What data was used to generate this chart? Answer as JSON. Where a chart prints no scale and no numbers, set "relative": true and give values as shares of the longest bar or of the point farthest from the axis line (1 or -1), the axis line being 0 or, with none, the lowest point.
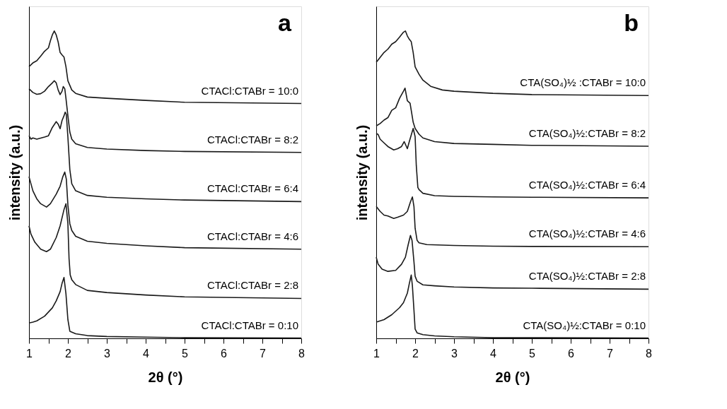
{
  "chart_data": [
    {
      "type": "line",
      "relative": true,
      "annotations": [
        "a"
      ],
      "xlabel": "2θ (°)",
      "ylabel": "intensity (a.u.)",
      "xlim": [
        1,
        8
      ],
      "xticks": [
        1,
        {
          "value": 1.5,
          "label": null
        },
        2,
        {
          "value": 2.5,
          "label": null
        },
        3,
        {
          "value": 3.5,
          "label": null
        },
        4,
        {
          "value": 4.5,
          "label": null
        },
        5,
        {
          "value": 5.5,
          "label": null
        },
        6,
        {
          "value": 6.5,
          "label": null
        },
        7,
        {
          "value": 7.5,
          "label": null
        },
        8
      ],
      "legend": false,
      "grid": false,
      "marker": "none",
      "line_style": "solid",
      "series": [
        {
          "name": "CTACl:CTABr = 10:0",
          "color": "#1a1a1a",
          "x": [
            1.0,
            1.1,
            1.2,
            1.3,
            1.4,
            1.5,
            1.55,
            1.6,
            1.65,
            1.7,
            1.75,
            1.8,
            1.85,
            1.9,
            1.95,
            2.0,
            2.1,
            2.2,
            2.5,
            3.0,
            4.0,
            5.0,
            8.0
          ],
          "values": [
            0.884,
            0.896,
            0.903,
            0.918,
            0.934,
            0.945,
            0.968,
            0.987,
            1.0,
            0.987,
            0.964,
            0.93,
            0.922,
            0.915,
            0.884,
            0.838,
            0.808,
            0.797,
            0.785,
            0.781,
            0.774,
            0.768,
            0.764
          ]
        },
        {
          "name": "CTACl:CTABr = 8:2",
          "color": "#1a1a1a",
          "x": [
            1.0,
            1.1,
            1.2,
            1.3,
            1.4,
            1.5,
            1.6,
            1.65,
            1.7,
            1.75,
            1.8,
            1.85,
            1.88,
            1.92,
            1.95,
            2.0,
            2.05,
            2.1,
            2.2,
            2.5,
            3.0,
            4.0,
            5.0,
            8.0
          ],
          "values": [
            0.812,
            0.8,
            0.794,
            0.796,
            0.804,
            0.819,
            0.831,
            0.838,
            0.831,
            0.808,
            0.793,
            0.804,
            0.819,
            0.812,
            0.781,
            0.724,
            0.671,
            0.648,
            0.633,
            0.621,
            0.616,
            0.611,
            0.608,
            0.605
          ]
        },
        {
          "name": "CTACl:CTABr = 6:4",
          "color": "#1a1a1a",
          "x": [
            1.0,
            1.05,
            1.1,
            1.2,
            1.4,
            1.5,
            1.6,
            1.7,
            1.75,
            1.8,
            1.85,
            1.9,
            1.93,
            1.96,
            2.0,
            2.05,
            2.1,
            2.2,
            2.5,
            3.0,
            4.0,
            5.0,
            8.0
          ],
          "values": [
            0.659,
            0.648,
            0.652,
            0.648,
            0.655,
            0.659,
            0.686,
            0.705,
            0.697,
            0.682,
            0.709,
            0.724,
            0.736,
            0.728,
            0.655,
            0.549,
            0.503,
            0.48,
            0.465,
            0.459,
            0.454,
            0.45,
            0.445
          ]
        },
        {
          "name": "CTACl:CTABr = 4:6",
          "color": "#1a1a1a",
          "x": [
            1.0,
            1.05,
            1.1,
            1.2,
            1.3,
            1.45,
            1.55,
            1.7,
            1.8,
            1.87,
            1.92,
            1.96,
            2.0,
            2.05,
            2.1,
            2.2,
            2.5,
            3.0,
            4.0,
            5.0,
            8.0
          ],
          "values": [
            0.526,
            0.503,
            0.48,
            0.454,
            0.438,
            0.427,
            0.438,
            0.469,
            0.495,
            0.526,
            0.541,
            0.518,
            0.434,
            0.373,
            0.351,
            0.332,
            0.316,
            0.309,
            0.301,
            0.295,
            0.29
          ]
        },
        {
          "name": "CTACl:CTABr = 2:8",
          "color": "#1a1a1a",
          "x": [
            1.0,
            1.05,
            1.15,
            1.3,
            1.45,
            1.55,
            1.7,
            1.8,
            1.9,
            1.95,
            2.0,
            2.03,
            2.06,
            2.1,
            2.2,
            2.5,
            3.0,
            4.0,
            5.0,
            8.0
          ],
          "values": [
            0.366,
            0.339,
            0.313,
            0.29,
            0.282,
            0.29,
            0.328,
            0.366,
            0.419,
            0.438,
            0.373,
            0.259,
            0.206,
            0.191,
            0.175,
            0.156,
            0.149,
            0.141,
            0.135,
            0.13
          ]
        },
        {
          "name": "CTACl:CTABr = 0:10",
          "color": "#1a1a1a",
          "x": [
            1.0,
            1.1,
            1.2,
            1.4,
            1.6,
            1.7,
            1.8,
            1.85,
            1.9,
            1.95,
            2.0,
            2.05,
            2.2,
            2.5,
            3.0,
            4.0,
            5.0,
            8.0
          ],
          "values": [
            0.05,
            0.053,
            0.057,
            0.072,
            0.099,
            0.122,
            0.152,
            0.179,
            0.198,
            0.145,
            0.061,
            0.023,
            0.015,
            0.009,
            0.006,
            0.004,
            0.002,
            0.001
          ]
        }
      ]
    },
    {
      "type": "line",
      "relative": true,
      "annotations": [
        "b"
      ],
      "xlabel": "2θ (°)",
      "ylabel": "intensity (a.u.)",
      "xlim": [
        1,
        8
      ],
      "xticks": [
        1,
        {
          "value": 1.5,
          "label": null
        },
        2,
        {
          "value": 2.5,
          "label": null
        },
        3,
        {
          "value": 3.5,
          "label": null
        },
        4,
        {
          "value": 4.5,
          "label": null
        },
        5,
        {
          "value": 5.5,
          "label": null
        },
        6,
        {
          "value": 6.5,
          "label": null
        },
        7,
        {
          "value": 7.5,
          "label": null
        },
        8
      ],
      "legend": false,
      "grid": false,
      "marker": "none",
      "line_style": "solid",
      "series": [
        {
          "name": "CTA(SO₄)½ :CTABr = 10:0",
          "color": "#1a1a1a",
          "x": [
            1.0,
            1.1,
            1.2,
            1.3,
            1.4,
            1.5,
            1.6,
            1.7,
            1.75,
            1.8,
            1.85,
            1.9,
            1.95,
            2.0,
            2.1,
            2.2,
            2.4,
            2.7,
            3.0,
            4.0,
            5.0,
            8.0
          ],
          "values": [
            0.898,
            0.914,
            0.93,
            0.941,
            0.957,
            0.965,
            0.98,
            0.996,
            1.0,
            0.984,
            0.973,
            0.965,
            0.93,
            0.883,
            0.859,
            0.84,
            0.82,
            0.808,
            0.804,
            0.797,
            0.793,
            0.79
          ]
        },
        {
          "name": "CTA(SO₄)½:CTABr = 8:2",
          "color": "#1a1a1a",
          "x": [
            1.0,
            1.1,
            1.2,
            1.3,
            1.4,
            1.5,
            1.6,
            1.7,
            1.74,
            1.8,
            1.87,
            1.9,
            1.95,
            2.0,
            2.1,
            2.2,
            2.5,
            3.0,
            4.0,
            5.0,
            8.0
          ],
          "values": [
            0.691,
            0.699,
            0.71,
            0.718,
            0.742,
            0.75,
            0.781,
            0.804,
            0.814,
            0.773,
            0.765,
            0.742,
            0.703,
            0.683,
            0.664,
            0.652,
            0.64,
            0.634,
            0.631,
            0.628,
            0.625
          ]
        },
        {
          "name": "CTA(SO₄)½:CTABr = 6:4",
          "color": "#1a1a1a",
          "x": [
            1.0,
            1.05,
            1.1,
            1.2,
            1.3,
            1.45,
            1.55,
            1.65,
            1.72,
            1.8,
            1.85,
            1.95,
            2.0,
            2.03,
            2.07,
            2.1,
            2.2,
            2.5,
            3.0,
            4.0,
            5.0,
            8.0
          ],
          "values": [
            0.667,
            0.663,
            0.648,
            0.636,
            0.624,
            0.613,
            0.617,
            0.624,
            0.64,
            0.617,
            0.64,
            0.683,
            0.656,
            0.562,
            0.491,
            0.484,
            0.472,
            0.464,
            0.462,
            0.46,
            0.459,
            0.457
          ]
        },
        {
          "name": "CTA(SO₄)½:CTABr = 4:6",
          "color": "#1a1a1a",
          "x": [
            1.0,
            1.1,
            1.2,
            1.3,
            1.45,
            1.55,
            1.7,
            1.8,
            1.88,
            1.93,
            1.97,
            2.0,
            2.05,
            2.1,
            2.3,
            3.0,
            4.0,
            5.0,
            8.0
          ],
          "values": [
            0.429,
            0.413,
            0.401,
            0.398,
            0.39,
            0.394,
            0.401,
            0.413,
            0.444,
            0.46,
            0.429,
            0.358,
            0.319,
            0.311,
            0.305,
            0.302,
            0.3,
            0.299,
            0.298
          ]
        },
        {
          "name": "CTA(SO₄)½:CTABr = 2:8",
          "color": "#1a1a1a",
          "x": [
            1.0,
            1.05,
            1.15,
            1.3,
            1.5,
            1.65,
            1.75,
            1.82,
            1.88,
            1.92,
            1.97,
            2.0,
            2.05,
            2.2,
            2.5,
            3.0,
            4.0,
            5.0,
            8.0
          ],
          "values": [
            0.264,
            0.241,
            0.225,
            0.218,
            0.221,
            0.241,
            0.264,
            0.304,
            0.335,
            0.319,
            0.249,
            0.202,
            0.186,
            0.174,
            0.171,
            0.167,
            0.164,
            0.163,
            0.16
          ]
        },
        {
          "name": "CTA(SO₄)½:CTABr = 0:10",
          "color": "#1a1a1a",
          "x": [
            1.0,
            1.1,
            1.2,
            1.4,
            1.6,
            1.7,
            1.8,
            1.85,
            1.9,
            1.93,
            1.97,
            2.0,
            2.05,
            2.2,
            2.5,
            3.0,
            4.0,
            5.0,
            8.0
          ],
          "values": [
            0.053,
            0.057,
            0.061,
            0.077,
            0.1,
            0.116,
            0.147,
            0.178,
            0.206,
            0.171,
            0.092,
            0.03,
            0.018,
            0.012,
            0.008,
            0.005,
            0.002,
            0.002,
            0.001
          ]
        }
      ]
    }
  ]
}
